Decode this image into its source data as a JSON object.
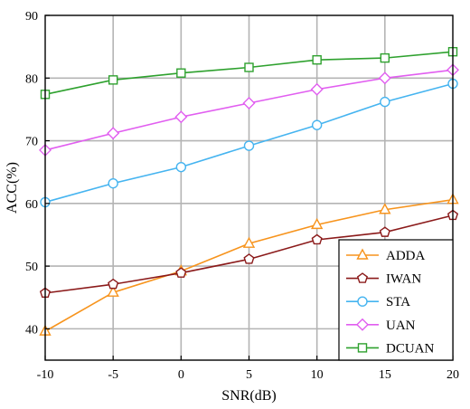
{
  "chart_data": {
    "type": "line",
    "xlabel": "SNR(dB)",
    "ylabel": "ACC(%)",
    "xlim": [
      -10,
      20
    ],
    "ylim": [
      35,
      90
    ],
    "x_ticks": [
      -10,
      -5,
      0,
      5,
      10,
      15,
      20
    ],
    "y_ticks": [
      40,
      50,
      60,
      70,
      80,
      90
    ],
    "x_tick_labels": [
      "-10",
      "-5",
      "0",
      "5",
      "10",
      "15",
      "20"
    ],
    "y_tick_labels": [
      "40",
      "50",
      "60",
      "70",
      "80",
      "90"
    ],
    "grid": true,
    "legend_position": "bottom-right",
    "x": [
      -10,
      -5,
      0,
      5,
      10,
      15,
      20
    ],
    "series": [
      {
        "name": "ADDA",
        "color": "#f7941d",
        "marker": "triangle",
        "values": [
          39.6,
          45.8,
          49.2,
          53.6,
          56.6,
          59.0,
          60.6
        ]
      },
      {
        "name": "IWAN",
        "color": "#8b1a1a",
        "marker": "pentagon",
        "values": [
          45.7,
          47.1,
          48.9,
          51.1,
          54.2,
          55.4,
          58.1
        ]
      },
      {
        "name": "STA",
        "color": "#45b4f0",
        "marker": "circle",
        "values": [
          60.2,
          63.2,
          65.8,
          69.2,
          72.5,
          76.2,
          79.1
        ]
      },
      {
        "name": "UAN",
        "color": "#e15ef0",
        "marker": "diamond",
        "values": [
          68.5,
          71.2,
          73.8,
          76.0,
          78.2,
          80.0,
          81.3
        ]
      },
      {
        "name": "DCUAN",
        "color": "#2ea12e",
        "marker": "square",
        "values": [
          77.4,
          79.7,
          80.8,
          81.7,
          82.9,
          83.2,
          84.2
        ]
      }
    ]
  }
}
